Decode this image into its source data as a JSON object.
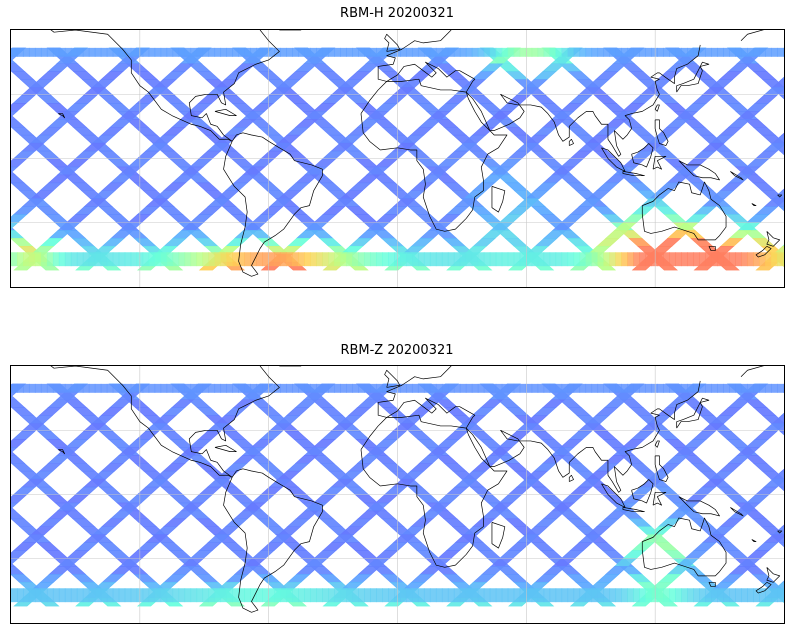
{
  "panels": [
    {
      "title": "RBM-H 20200321",
      "strong_regions": "southern-ocean, north-pacific-band, south-america",
      "colormap": "jet"
    },
    {
      "title": "RBM-Z 20200321",
      "strong_regions": "south-america",
      "colormap": "jet"
    }
  ],
  "colors": {
    "low": "#6a6aff",
    "mid_low": "#5aaaff",
    "mid": "#66ffdd",
    "mid_high": "#bbff88",
    "high": "#ffd255",
    "very_high": "#ff7f60",
    "coastline": "#000000",
    "grid": "#c8c8c8"
  },
  "map": {
    "projection": "plate-carree",
    "lon_range": [
      -180,
      180
    ],
    "lat_range": [
      -60,
      60
    ],
    "gridlines": true
  }
}
